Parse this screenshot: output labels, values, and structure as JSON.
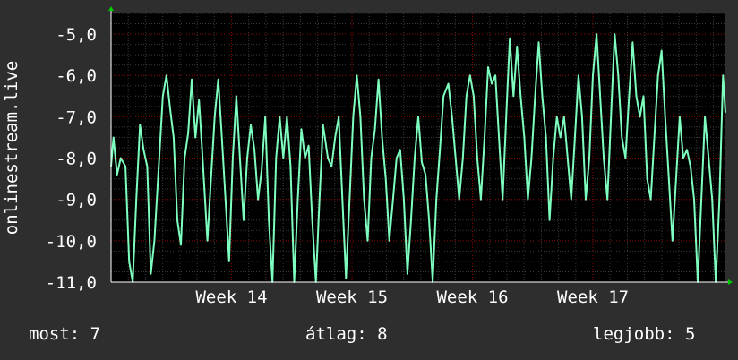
{
  "chart_data": {
    "type": "line",
    "title": "",
    "xlabel": "",
    "ylabel": "onlinestream.live",
    "ylim": [
      -11.0,
      -4.5
    ],
    "y_ticks": [
      "-5,0",
      "-6,0",
      "-7,0",
      "-8,0",
      "-9,0",
      "-10,0",
      "-11,0"
    ],
    "y_tick_values": [
      -5,
      -6,
      -7,
      -8,
      -9,
      -10,
      -11
    ],
    "x_ticks": [
      "Week 14",
      "Week 15",
      "Week 16",
      "Week 17"
    ],
    "x_tick_values": [
      14,
      15,
      16,
      17
    ],
    "xlim": [
      13.0,
      18.1
    ],
    "grid": true,
    "colors": {
      "line": "#7fffbf",
      "plot_bg": "#000000",
      "page_bg": "#2e2e2e",
      "grid": "#8b0000",
      "arrow": "#00cc00"
    },
    "series": [
      {
        "values": [
          [
            13.0,
            -8.2
          ],
          [
            13.02,
            -7.5
          ],
          [
            13.05,
            -8.4
          ],
          [
            13.08,
            -8.0
          ],
          [
            13.12,
            -8.2
          ],
          [
            13.15,
            -10.5
          ],
          [
            13.18,
            -11.0
          ],
          [
            13.21,
            -9.0
          ],
          [
            13.24,
            -7.2
          ],
          [
            13.27,
            -7.8
          ],
          [
            13.3,
            -8.2
          ],
          [
            13.33,
            -10.8
          ],
          [
            13.36,
            -10.0
          ],
          [
            13.4,
            -8.0
          ],
          [
            13.43,
            -6.5
          ],
          [
            13.46,
            -6.0
          ],
          [
            13.49,
            -6.8
          ],
          [
            13.52,
            -7.5
          ],
          [
            13.55,
            -9.5
          ],
          [
            13.58,
            -10.1
          ],
          [
            13.61,
            -8.0
          ],
          [
            13.64,
            -7.4
          ],
          [
            13.67,
            -6.1
          ],
          [
            13.7,
            -7.5
          ],
          [
            13.73,
            -6.6
          ],
          [
            13.76,
            -8.0
          ],
          [
            13.8,
            -10.0
          ],
          [
            13.83,
            -8.5
          ],
          [
            13.86,
            -7.0
          ],
          [
            13.89,
            -6.1
          ],
          [
            13.92,
            -7.5
          ],
          [
            13.95,
            -9.0
          ],
          [
            13.98,
            -10.5
          ],
          [
            14.01,
            -8.0
          ],
          [
            14.04,
            -6.5
          ],
          [
            14.07,
            -8.0
          ],
          [
            14.1,
            -9.5
          ],
          [
            14.13,
            -8.0
          ],
          [
            14.16,
            -7.2
          ],
          [
            14.19,
            -7.8
          ],
          [
            14.22,
            -9.0
          ],
          [
            14.25,
            -8.3
          ],
          [
            14.28,
            -7.0
          ],
          [
            14.31,
            -9.5
          ],
          [
            14.34,
            -11.0
          ],
          [
            14.37,
            -8.0
          ],
          [
            14.4,
            -7.0
          ],
          [
            14.43,
            -8.0
          ],
          [
            14.46,
            -7.0
          ],
          [
            14.49,
            -8.2
          ],
          [
            14.52,
            -11.0
          ],
          [
            14.55,
            -9.0
          ],
          [
            14.58,
            -7.3
          ],
          [
            14.61,
            -8.0
          ],
          [
            14.64,
            -7.7
          ],
          [
            14.67,
            -9.5
          ],
          [
            14.7,
            -11.0
          ],
          [
            14.73,
            -9.0
          ],
          [
            14.76,
            -7.2
          ],
          [
            14.8,
            -8.0
          ],
          [
            14.83,
            -8.2
          ],
          [
            14.86,
            -7.5
          ],
          [
            14.89,
            -7.0
          ],
          [
            14.92,
            -9.0
          ],
          [
            14.95,
            -10.9
          ],
          [
            14.98,
            -9.0
          ],
          [
            15.01,
            -7.0
          ],
          [
            15.04,
            -6.0
          ],
          [
            15.07,
            -7.0
          ],
          [
            15.1,
            -9.0
          ],
          [
            15.13,
            -10.0
          ],
          [
            15.16,
            -8.0
          ],
          [
            15.19,
            -7.3
          ],
          [
            15.22,
            -6.1
          ],
          [
            15.25,
            -7.5
          ],
          [
            15.28,
            -8.5
          ],
          [
            15.31,
            -10.0
          ],
          [
            15.34,
            -9.0
          ],
          [
            15.37,
            -8.0
          ],
          [
            15.4,
            -7.8
          ],
          [
            15.43,
            -9.0
          ],
          [
            15.46,
            -10.8
          ],
          [
            15.49,
            -9.5
          ],
          [
            15.52,
            -8.0
          ],
          [
            15.55,
            -7.0
          ],
          [
            15.58,
            -8.1
          ],
          [
            15.61,
            -8.4
          ],
          [
            15.64,
            -9.5
          ],
          [
            15.67,
            -11.0
          ],
          [
            15.7,
            -9.0
          ],
          [
            15.73,
            -7.8
          ],
          [
            15.76,
            -6.5
          ],
          [
            15.8,
            -6.2
          ],
          [
            15.83,
            -7.0
          ],
          [
            15.86,
            -8.0
          ],
          [
            15.89,
            -9.0
          ],
          [
            15.92,
            -8.0
          ],
          [
            15.95,
            -6.5
          ],
          [
            15.98,
            -6.0
          ],
          [
            16.01,
            -6.5
          ],
          [
            16.04,
            -8.0
          ],
          [
            16.07,
            -9.0
          ],
          [
            16.1,
            -7.5
          ],
          [
            16.13,
            -5.8
          ],
          [
            16.16,
            -6.2
          ],
          [
            16.19,
            -6.0
          ],
          [
            16.22,
            -7.5
          ],
          [
            16.25,
            -9.0
          ],
          [
            16.28,
            -7.0
          ],
          [
            16.31,
            -5.1
          ],
          [
            16.34,
            -6.5
          ],
          [
            16.37,
            -5.3
          ],
          [
            16.4,
            -6.5
          ],
          [
            16.43,
            -7.5
          ],
          [
            16.46,
            -9.0
          ],
          [
            16.49,
            -8.0
          ],
          [
            16.52,
            -6.5
          ],
          [
            16.55,
            -5.2
          ],
          [
            16.58,
            -6.5
          ],
          [
            16.61,
            -7.5
          ],
          [
            16.64,
            -9.5
          ],
          [
            16.67,
            -8.0
          ],
          [
            16.7,
            -7.0
          ],
          [
            16.73,
            -7.5
          ],
          [
            16.76,
            -7.0
          ],
          [
            16.79,
            -8.0
          ],
          [
            16.82,
            -9.0
          ],
          [
            16.85,
            -7.5
          ],
          [
            16.88,
            -6.0
          ],
          [
            16.91,
            -7.0
          ],
          [
            16.94,
            -9.0
          ],
          [
            16.97,
            -8.0
          ],
          [
            17.0,
            -6.0
          ],
          [
            17.03,
            -5.0
          ],
          [
            17.06,
            -6.5
          ],
          [
            17.09,
            -8.0
          ],
          [
            17.12,
            -9.0
          ],
          [
            17.15,
            -7.0
          ],
          [
            17.18,
            -5.0
          ],
          [
            17.21,
            -6.0
          ],
          [
            17.24,
            -7.5
          ],
          [
            17.27,
            -8.0
          ],
          [
            17.3,
            -6.5
          ],
          [
            17.33,
            -5.2
          ],
          [
            17.36,
            -6.5
          ],
          [
            17.39,
            -7.0
          ],
          [
            17.42,
            -6.5
          ],
          [
            17.45,
            -8.5
          ],
          [
            17.48,
            -9.0
          ],
          [
            17.51,
            -7.5
          ],
          [
            17.54,
            -6.0
          ],
          [
            17.57,
            -5.4
          ],
          [
            17.6,
            -7.0
          ],
          [
            17.63,
            -8.5
          ],
          [
            17.66,
            -10.0
          ],
          [
            17.69,
            -8.5
          ],
          [
            17.72,
            -7.0
          ],
          [
            17.75,
            -8.0
          ],
          [
            17.78,
            -7.8
          ],
          [
            17.81,
            -8.2
          ],
          [
            17.84,
            -9.0
          ],
          [
            17.87,
            -11.0
          ],
          [
            17.9,
            -9.0
          ],
          [
            17.93,
            -7.0
          ],
          [
            17.96,
            -8.0
          ],
          [
            17.99,
            -9.0
          ],
          [
            18.02,
            -11.0
          ],
          [
            18.05,
            -9.0
          ],
          [
            18.08,
            -6.0
          ],
          [
            18.1,
            -6.9
          ]
        ]
      }
    ]
  },
  "legend": {
    "current": "most: 7",
    "average": "átlag: 8",
    "max": "legjobb: 5"
  }
}
